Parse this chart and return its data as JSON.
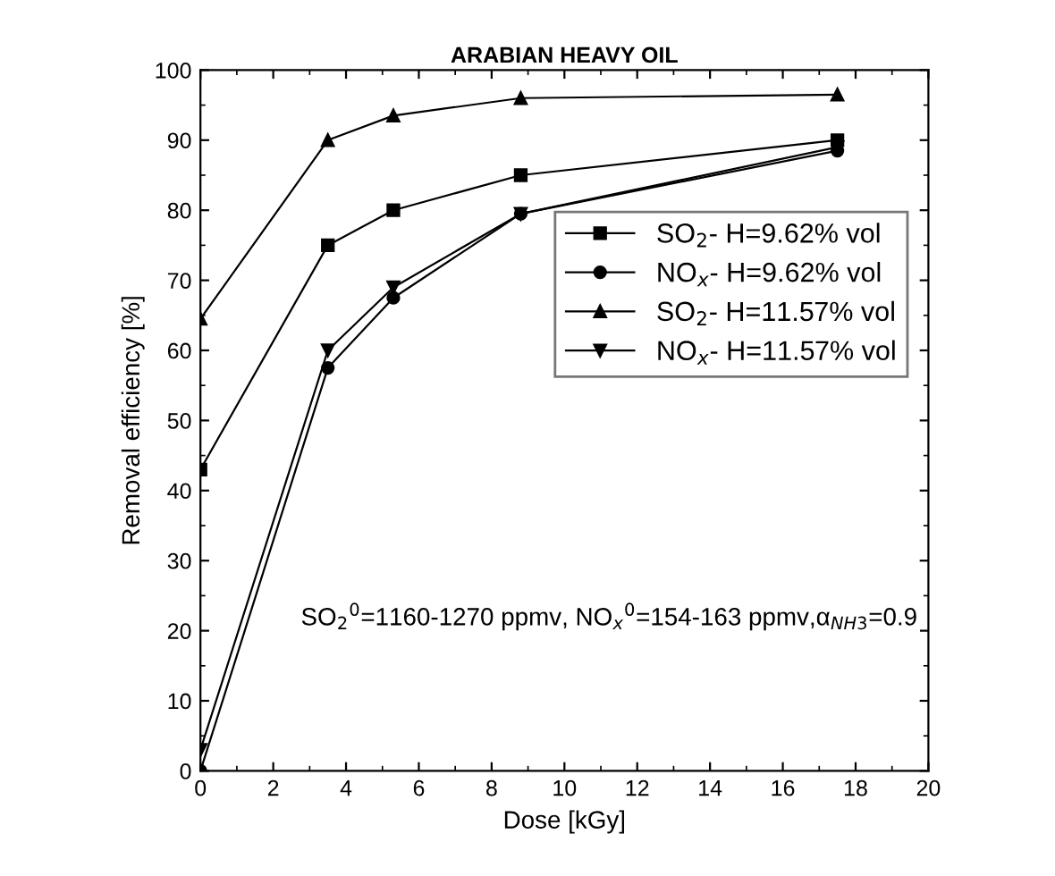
{
  "chart_data": {
    "type": "line",
    "title": "ARABIAN HEAVY OIL",
    "xlabel": "Dose [kGy]",
    "ylabel": "Removal efficiency [%]",
    "x": [
      0,
      3.5,
      5.3,
      8.8,
      17.5
    ],
    "series": [
      {
        "name": "SO$_{2}$- H=9.62% vol",
        "color": "#000000",
        "marker": "square",
        "values": [
          43,
          75,
          80,
          85,
          90
        ]
      },
      {
        "name": "NO$_{x}$- H=9.62% vol",
        "color": "#000000",
        "marker": "circle",
        "values": [
          0,
          57.5,
          67.5,
          79.5,
          88.5
        ]
      },
      {
        "name": "SO$_{2}$- H=11.57% vol",
        "color": "#000000",
        "marker": "triangle",
        "values": [
          64.5,
          90,
          93.5,
          96,
          96.5
        ]
      },
      {
        "name": "NO$_{x}$- H=11.57% vol",
        "color": "#000000",
        "marker": "triangle_down",
        "values": [
          3,
          60,
          69,
          79.5,
          89
        ]
      }
    ],
    "xlim": [
      0,
      20
    ],
    "xticks": [
      0,
      2,
      4,
      6,
      8,
      10,
      12,
      14,
      16,
      18,
      20
    ],
    "ylim": [
      0,
      100
    ],
    "yticks": [
      0,
      10,
      20,
      30,
      40,
      50,
      60,
      70,
      80,
      90,
      100
    ],
    "grid": false,
    "legend": "right",
    "line_style": "solid",
    "annotations": [
      "SO$_{2}$$^{0}$=1160-1270 ppmv, NO$_{x}$$^{0}$=154-163 ppmv,α$_{NH3}$=0.9"
    ]
  }
}
